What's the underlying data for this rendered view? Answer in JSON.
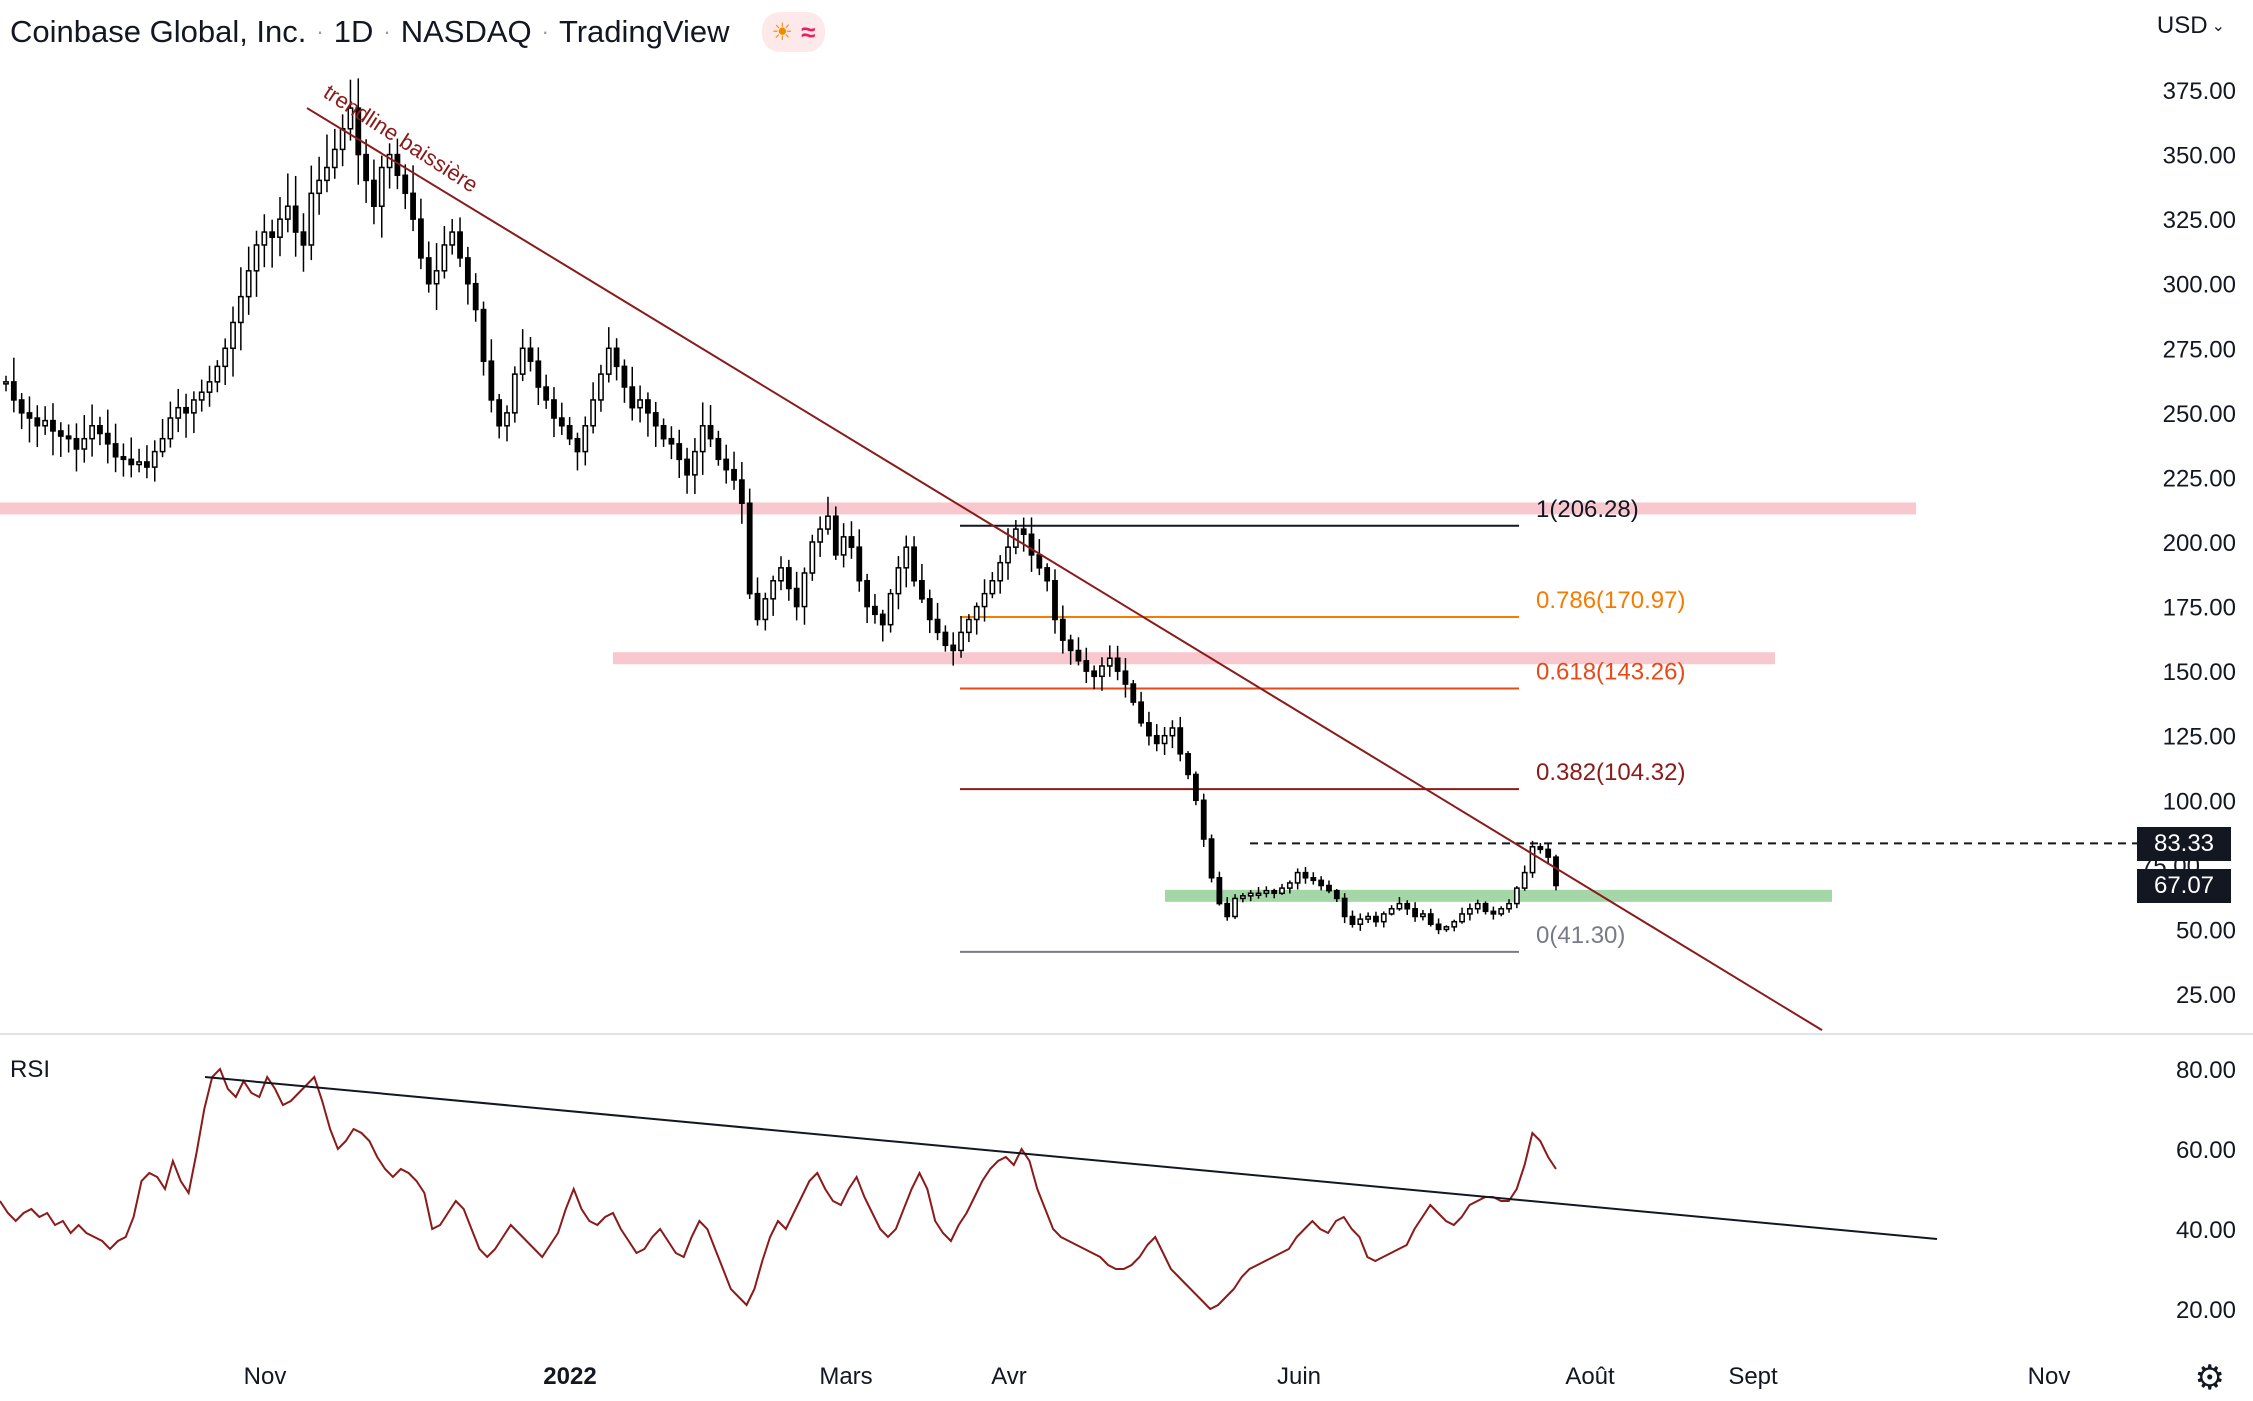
{
  "header": {
    "symbol_name": "Coinbase Global, Inc.",
    "interval": "1D",
    "exchange": "NASDAQ",
    "source": "TradingView",
    "icons": [
      "sun-icon",
      "wave-icon"
    ]
  },
  "currency": "USD",
  "rsi_label": "RSI",
  "price_tags": {
    "line_price": "83.33",
    "current_price": "67.07",
    "hidden_tick": "75.00"
  },
  "colors": {
    "trendline": "#8b1a1a",
    "pink_zone": "#f9c8cf",
    "green_zone": "#a5d6a7",
    "fib_1": "#131722",
    "fib_0786": "#f57c00",
    "fib_0618": "#e64a19",
    "fib_0382": "#8b1a1a",
    "fib_0": "#787b86",
    "rsi_line": "#8b1a1a",
    "candle": "#000000"
  },
  "chart_data": [
    {
      "type": "candlestick",
      "title": "Coinbase Global, Inc. · 1D · NASDAQ",
      "y_axis": {
        "ticks": [
          "375.00",
          "350.00",
          "325.00",
          "300.00",
          "275.00",
          "250.00",
          "225.00",
          "200.00",
          "175.00",
          "150.00",
          "125.00",
          "100.00",
          "50.00",
          "25.00"
        ],
        "range": [
          10,
          390
        ]
      },
      "x_axis": {
        "ticks": [
          {
            "label": "Nov",
            "bold": false
          },
          {
            "label": "2022",
            "bold": true
          },
          {
            "label": "Mars",
            "bold": false
          },
          {
            "label": "Avr",
            "bold": false
          },
          {
            "label": "Juin",
            "bold": false
          },
          {
            "label": "Août",
            "bold": false
          },
          {
            "label": "Sept",
            "bold": false
          },
          {
            "label": "Nov",
            "bold": false
          }
        ]
      },
      "closes_approx": [
        262,
        255,
        250,
        248,
        245,
        247,
        243,
        241,
        240,
        236,
        240,
        245,
        242,
        238,
        233,
        232,
        230,
        231,
        229,
        235,
        240,
        248,
        252,
        250,
        255,
        258,
        262,
        268,
        275,
        285,
        295,
        305,
        315,
        320,
        318,
        325,
        330,
        320,
        315,
        335,
        340,
        345,
        352,
        360,
        368,
        350,
        340,
        330,
        345,
        350,
        342,
        335,
        325,
        310,
        300,
        305,
        315,
        320,
        310,
        300,
        290,
        270,
        255,
        245,
        250,
        265,
        275,
        270,
        260,
        255,
        248,
        245,
        240,
        235,
        245,
        255,
        265,
        275,
        268,
        260,
        252,
        255,
        250,
        245,
        240,
        238,
        232,
        226,
        235,
        245,
        240,
        232,
        228,
        224,
        215,
        180,
        170,
        178,
        185,
        190,
        182,
        175,
        188,
        200,
        205,
        210,
        195,
        202,
        198,
        185,
        175,
        172,
        168,
        180,
        190,
        198,
        185,
        178,
        170,
        165,
        160,
        158,
        165,
        170,
        175,
        180,
        185,
        192,
        198,
        205,
        203,
        195,
        190,
        185,
        170,
        162,
        158,
        154,
        150,
        148,
        152,
        155,
        150,
        145,
        138,
        130,
        125,
        122,
        125,
        128,
        118,
        110,
        100,
        85,
        70,
        60,
        55,
        62,
        63,
        64,
        64,
        65,
        64,
        66,
        68,
        72,
        70,
        69,
        67,
        65,
        62,
        55,
        52,
        54,
        55,
        53,
        56,
        58,
        60,
        58,
        55,
        56,
        52,
        50,
        51,
        53,
        56,
        58,
        60,
        57,
        56,
        58,
        60,
        66,
        72,
        82,
        81,
        78,
        67
      ],
      "fibonacci": [
        {
          "label": "1(206.28)",
          "value": 206.28
        },
        {
          "label": "0.786(170.97)",
          "value": 170.97
        },
        {
          "label": "0.618(143.26)",
          "value": 143.26
        },
        {
          "label": "0.382(104.32)",
          "value": 104.32
        },
        {
          "label": "0(41.30)",
          "value": 41.3
        }
      ],
      "zones": [
        {
          "name": "resistance",
          "value": 213
        },
        {
          "name": "resistance",
          "value": 155
        },
        {
          "name": "support",
          "value": 63
        }
      ],
      "dashed_level": 83.33,
      "current_price": 67.07,
      "annotations": [
        {
          "text": "trendline baissière"
        }
      ]
    },
    {
      "type": "line",
      "title": "RSI",
      "y_axis": {
        "ticks": [
          "80.00",
          "60.00",
          "40.00",
          "20.00"
        ],
        "range": [
          13,
          86
        ]
      },
      "values_approx": [
        47,
        44,
        42,
        44,
        45,
        43,
        44,
        41,
        42,
        39,
        41,
        39,
        38,
        37,
        35,
        37,
        38,
        43,
        52,
        54,
        53,
        50,
        57,
        52,
        49,
        59,
        70,
        78,
        80,
        75,
        73,
        77,
        74,
        73,
        78,
        75,
        71,
        72,
        74,
        76,
        78,
        72,
        65,
        60,
        62,
        65,
        64,
        62,
        58,
        55,
        53,
        55,
        54,
        52,
        49,
        40,
        41,
        44,
        47,
        45,
        40,
        35,
        33,
        35,
        38,
        41,
        39,
        37,
        35,
        33,
        36,
        39,
        45,
        50,
        45,
        42,
        41,
        43,
        44,
        40,
        37,
        34,
        35,
        38,
        40,
        37,
        34,
        33,
        38,
        42,
        40,
        35,
        30,
        25,
        23,
        21,
        25,
        32,
        38,
        42,
        40,
        44,
        48,
        52,
        54,
        50,
        47,
        46,
        50,
        53,
        48,
        44,
        40,
        38,
        40,
        45,
        50,
        54,
        50,
        42,
        39,
        37,
        41,
        44,
        48,
        52,
        55,
        57,
        58,
        56,
        60,
        57,
        50,
        45,
        40,
        38,
        37,
        36,
        35,
        34,
        33,
        31,
        30,
        30,
        31,
        33,
        36,
        38,
        34,
        30,
        28,
        26,
        24,
        22,
        20,
        21,
        23,
        25,
        28,
        30,
        31,
        32,
        33,
        34,
        35,
        38,
        40,
        42,
        40,
        39,
        42,
        43,
        40,
        38,
        33,
        32,
        33,
        34,
        35,
        36,
        40,
        43,
        46,
        44,
        42,
        41,
        43,
        46,
        47,
        48,
        48,
        47,
        47,
        50,
        56,
        64,
        62,
        58,
        55
      ]
    }
  ]
}
